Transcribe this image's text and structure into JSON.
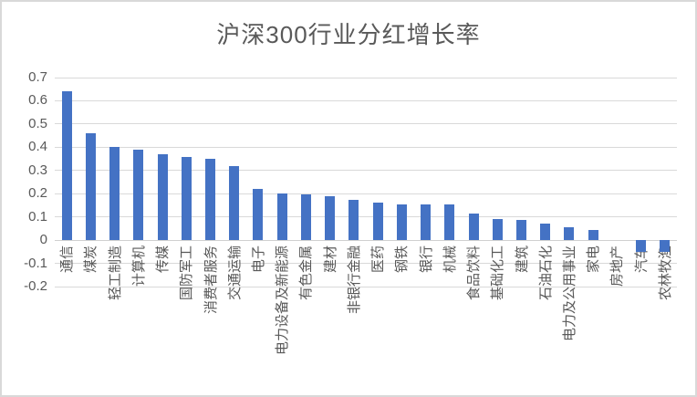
{
  "title": "沪深300行业分红增长率",
  "colors": {
    "bar": "#4472C4",
    "gridline": "#D9D9D9",
    "axis_text": "#595959",
    "title_text": "#595959",
    "chart_border": "#D9D9D9",
    "background": "#FFFFFF"
  },
  "chart_data": {
    "type": "bar",
    "title": "沪深300行业分红增长率",
    "categories": [
      "通信",
      "煤炭",
      "轻工制造",
      "计算机",
      "传媒",
      "国防军工",
      "消费者服务",
      "交通运输",
      "电子",
      "电力设备及新能源",
      "有色金属",
      "建材",
      "非银行金融",
      "医药",
      "钢铁",
      "银行",
      "机械",
      "食品饮料",
      "基础化工",
      "建筑",
      "石油石化",
      "电力及公用事业",
      "家电",
      "房地产",
      "汽车",
      "农林牧渔"
    ],
    "values": [
      0.64,
      0.46,
      0.4,
      0.39,
      0.37,
      0.36,
      0.35,
      0.32,
      0.22,
      0.2,
      0.195,
      0.19,
      0.175,
      0.16,
      0.155,
      0.155,
      0.155,
      0.115,
      0.09,
      0.085,
      0.07,
      0.055,
      0.045,
      0.0,
      -0.05,
      -0.05
    ],
    "xlabel": "",
    "ylabel": "",
    "ylim": [
      -0.2,
      0.7
    ],
    "ytick_step": 0.1,
    "ytick_labels": [
      "0.7",
      "0.6",
      "0.5",
      "0.4",
      "0.3",
      "0.2",
      "0.1",
      "0",
      "-0.1",
      "-0.2"
    ],
    "grid": true,
    "legend": false,
    "bar_orientation": "vertical",
    "x_label_rotation_deg": -90
  }
}
